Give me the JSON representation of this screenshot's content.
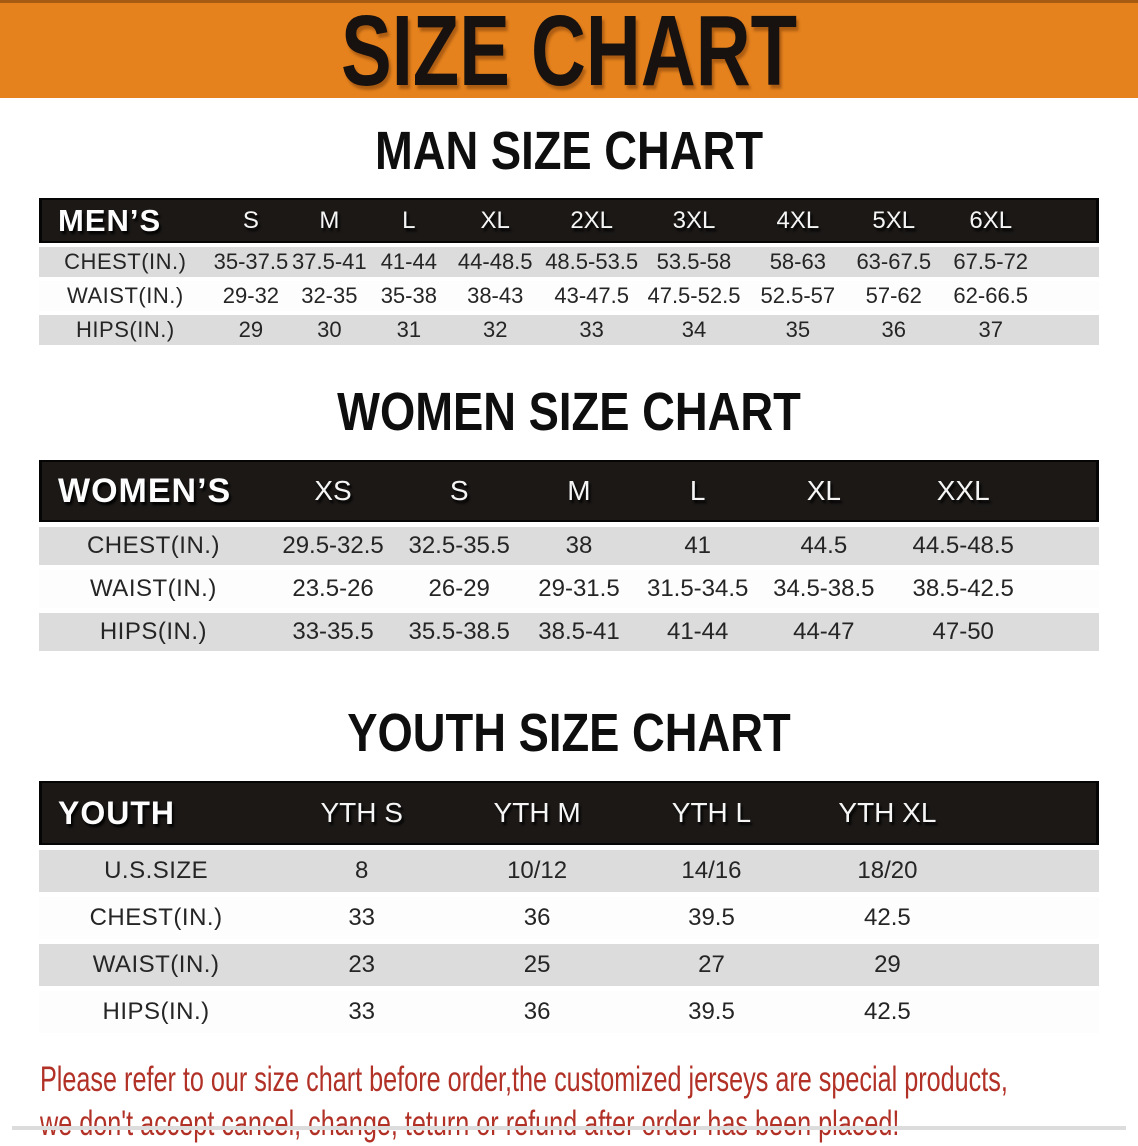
{
  "banner": {
    "title": "SIZE CHART"
  },
  "colors": {
    "accent": "#E5821D",
    "accent-dark": "#A55B12",
    "banner-text": "#171110",
    "band": "#1B1816",
    "stripe": "#DCDCDC",
    "note": "#B23127"
  },
  "tables": {
    "men": {
      "title": "MAN SIZE CHART",
      "corner_label": "MEN’S",
      "sizes": [
        "S",
        "M",
        "L",
        "XL",
        "2XL",
        "3XL",
        "4XL",
        "5XL",
        "6XL"
      ],
      "rows": [
        {
          "label": "CHEST(IN.)",
          "values": [
            "35-37.5",
            "37.5-41",
            "41-44",
            "44-48.5",
            "48.5-53.5",
            "53.5-58",
            "58-63",
            "63-67.5",
            "67.5-72"
          ]
        },
        {
          "label": "WAIST(IN.)",
          "values": [
            "29-32",
            "32-35",
            "35-38",
            "38-43",
            "43-47.5",
            "47.5-52.5",
            "52.5-57",
            "57-62",
            "62-66.5"
          ]
        },
        {
          "label": "HIPS(IN.)",
          "values": [
            "29",
            "30",
            "31",
            "32",
            "33",
            "34",
            "35",
            "36",
            "37"
          ]
        }
      ]
    },
    "women": {
      "title": "WOMEN SIZE CHART",
      "corner_label": "WOMEN’S",
      "sizes": [
        "XS",
        "S",
        "M",
        "L",
        "XL",
        "XXL"
      ],
      "rows": [
        {
          "label": "CHEST(IN.)",
          "values": [
            "29.5-32.5",
            "32.5-35.5",
            "38",
            "41",
            "44.5",
            "44.5-48.5"
          ]
        },
        {
          "label": "WAIST(IN.)",
          "values": [
            "23.5-26",
            "26-29",
            "29-31.5",
            "31.5-34.5",
            "34.5-38.5",
            "38.5-42.5"
          ]
        },
        {
          "label": "HIPS(IN.)",
          "values": [
            "33-35.5",
            "35.5-38.5",
            "38.5-41",
            "41-44",
            "44-47",
            "47-50"
          ]
        }
      ]
    },
    "youth": {
      "title": "YOUTH SIZE CHART",
      "corner_label": "YOUTH",
      "sizes": [
        "YTH S",
        "YTH M",
        "YTH L",
        "YTH XL"
      ],
      "rows": [
        {
          "label": "U.S.SIZE",
          "values": [
            "8",
            "10/12",
            "14/16",
            "18/20"
          ]
        },
        {
          "label": "CHEST(IN.)",
          "values": [
            "33",
            "36",
            "39.5",
            "42.5"
          ]
        },
        {
          "label": "WAIST(IN.)",
          "values": [
            "23",
            "25",
            "27",
            "29"
          ]
        },
        {
          "label": "HIPS(IN.)",
          "values": [
            "33",
            "36",
            "39.5",
            "42.5"
          ]
        }
      ]
    }
  },
  "footer_note": {
    "line1": "Please refer to our size chart before order,the customized jerseys are special products,",
    "line2": "we don't accept cancel, change, teturn or refund after order has been placed!"
  }
}
